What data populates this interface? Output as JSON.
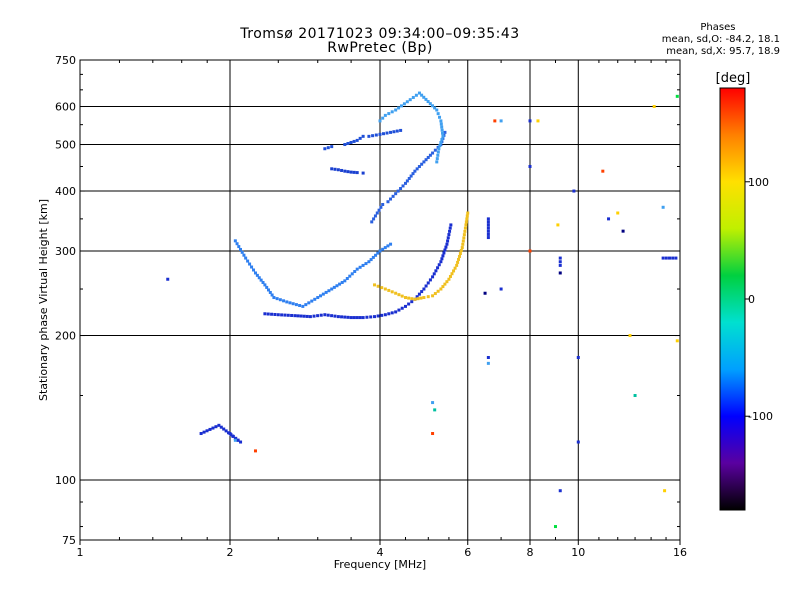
{
  "header": {
    "title": "Tromsø 20171023 09:34:00–09:35:43",
    "subtitle": "RwPretec (Bp)",
    "phases_title": "Phases",
    "phases_o": "mean, sd,O: -84.2, 18.1",
    "phases_x": "mean, sd,X:  95.7, 18.9"
  },
  "chart_data": {
    "type": "scatter",
    "xlabel": "Frequency [MHz]",
    "ylabel": "Stationary phase Virtual Height [km]",
    "xscale": "log",
    "yscale": "log",
    "xlim": [
      1,
      16
    ],
    "ylim": [
      75,
      750
    ],
    "xticks": [
      1,
      2,
      4,
      6,
      8,
      10,
      16
    ],
    "yticks": [
      75,
      100,
      200,
      300,
      400,
      500,
      600,
      750
    ],
    "grid": true,
    "colorbar": {
      "label": "[deg]",
      "range": [
        -180,
        180
      ],
      "ticks": [
        100,
        0,
        -100
      ],
      "colormap": [
        "#000000",
        "#5a00a0",
        "#0000ff",
        "#00a0ff",
        "#00e0d0",
        "#00d040",
        "#c0f000",
        "#ffe000",
        "#ff8000",
        "#ff0000"
      ]
    },
    "series": [
      {
        "color": "#1a2fd0",
        "points": [
          [
            2.35,
            222
          ],
          [
            2.5,
            221
          ],
          [
            2.7,
            220
          ],
          [
            2.9,
            219
          ],
          [
            3.1,
            221
          ],
          [
            3.3,
            219
          ],
          [
            3.5,
            218
          ],
          [
            3.7,
            218
          ],
          [
            3.9,
            219
          ],
          [
            4.1,
            221
          ],
          [
            4.3,
            224
          ],
          [
            4.5,
            230
          ],
          [
            4.7,
            238
          ],
          [
            4.9,
            250
          ],
          [
            5.1,
            265
          ],
          [
            5.3,
            285
          ],
          [
            5.45,
            310
          ],
          [
            5.55,
            340
          ]
        ]
      },
      {
        "color": "#2a60e0",
        "points": [
          [
            3.85,
            345
          ],
          [
            3.95,
            360
          ],
          [
            4.05,
            375
          ],
          [
            4.15,
            380
          ],
          [
            4.3,
            395
          ],
          [
            4.5,
            415
          ],
          [
            4.7,
            440
          ],
          [
            4.9,
            460
          ],
          [
            5.1,
            480
          ],
          [
            5.3,
            500
          ],
          [
            5.4,
            530
          ]
        ]
      },
      {
        "color": "#1a40d0",
        "points": [
          [
            3.2,
            445
          ],
          [
            3.3,
            443
          ],
          [
            3.4,
            440
          ],
          [
            3.5,
            438
          ],
          [
            3.6,
            437
          ],
          [
            3.7,
            436
          ]
        ]
      },
      {
        "color": "#3080f0",
        "points": [
          [
            2.05,
            315
          ],
          [
            2.15,
            290
          ],
          [
            2.25,
            270
          ],
          [
            2.35,
            255
          ],
          [
            2.45,
            240
          ],
          [
            2.6,
            235
          ],
          [
            2.8,
            230
          ],
          [
            3.0,
            240
          ],
          [
            3.2,
            250
          ],
          [
            3.4,
            260
          ],
          [
            3.6,
            275
          ],
          [
            3.8,
            285
          ],
          [
            4.0,
            300
          ],
          [
            4.2,
            310
          ]
        ]
      },
      {
        "color": "#2050d8",
        "points": [
          [
            3.8,
            520
          ],
          [
            4.0,
            525
          ],
          [
            4.2,
            530
          ],
          [
            4.4,
            535
          ],
          [
            3.4,
            500
          ],
          [
            3.6,
            510
          ],
          [
            3.7,
            520
          ],
          [
            3.1,
            490
          ],
          [
            3.2,
            495
          ]
        ]
      },
      {
        "color": "#40a0f0",
        "points": [
          [
            4.0,
            560
          ],
          [
            4.1,
            575
          ],
          [
            4.3,
            590
          ],
          [
            4.6,
            620
          ],
          [
            4.8,
            640
          ],
          [
            5.2,
            590
          ],
          [
            5.3,
            560
          ],
          [
            5.35,
            520
          ],
          [
            5.25,
            490
          ],
          [
            5.2,
            460
          ]
        ]
      },
      {
        "color": "#f0c020",
        "points": [
          [
            3.9,
            255
          ],
          [
            4.1,
            250
          ],
          [
            4.3,
            245
          ],
          [
            4.5,
            240
          ],
          [
            4.7,
            238
          ],
          [
            4.9,
            240
          ],
          [
            5.1,
            242
          ],
          [
            5.3,
            250
          ],
          [
            5.5,
            262
          ],
          [
            5.7,
            280
          ],
          [
            5.85,
            305
          ],
          [
            5.95,
            340
          ],
          [
            6.0,
            360
          ]
        ]
      },
      {
        "color": "#1a2fd0",
        "points": [
          [
            2.0,
            125
          ],
          [
            2.05,
            122
          ],
          [
            2.1,
            120
          ],
          [
            1.9,
            130
          ],
          [
            1.75,
            125
          ],
          [
            1.5,
            262
          ],
          [
            6.6,
            350
          ],
          [
            6.6,
            320
          ],
          [
            6.6,
            180
          ],
          [
            7.0,
            250
          ],
          [
            8.0,
            450
          ],
          [
            9.2,
            290
          ],
          [
            9.2,
            280
          ],
          [
            9.8,
            400
          ],
          [
            10.0,
            180
          ],
          [
            10.0,
            120
          ],
          [
            11.5,
            350
          ],
          [
            14.8,
            290
          ],
          [
            15.7,
            290
          ],
          [
            9.2,
            95
          ],
          [
            8.0,
            560
          ]
        ]
      },
      {
        "color": "#40a0f0",
        "points": [
          [
            2.05,
            121
          ],
          [
            6.6,
            175
          ],
          [
            7.0,
            560
          ],
          [
            8.0,
            300
          ],
          [
            14.8,
            370
          ],
          [
            5.1,
            145
          ]
        ]
      },
      {
        "color": "#00c0a0",
        "points": [
          [
            13.0,
            150
          ],
          [
            5.15,
            140
          ]
        ]
      },
      {
        "color": "#00e040",
        "points": [
          [
            9.0,
            80
          ],
          [
            15.8,
            630
          ]
        ]
      },
      {
        "color": "#ffd000",
        "points": [
          [
            9.1,
            340
          ],
          [
            12.0,
            360
          ],
          [
            12.7,
            200
          ],
          [
            14.9,
            95
          ],
          [
            15.8,
            195
          ],
          [
            8.3,
            560
          ],
          [
            14.2,
            600
          ]
        ]
      },
      {
        "color": "#ff4000",
        "points": [
          [
            2.25,
            115
          ],
          [
            6.8,
            560
          ],
          [
            11.2,
            440
          ],
          [
            5.1,
            125
          ],
          [
            8.0,
            300
          ]
        ]
      },
      {
        "color": "#000080",
        "points": [
          [
            6.5,
            245
          ],
          [
            9.2,
            270
          ],
          [
            12.3,
            330
          ]
        ]
      }
    ]
  }
}
